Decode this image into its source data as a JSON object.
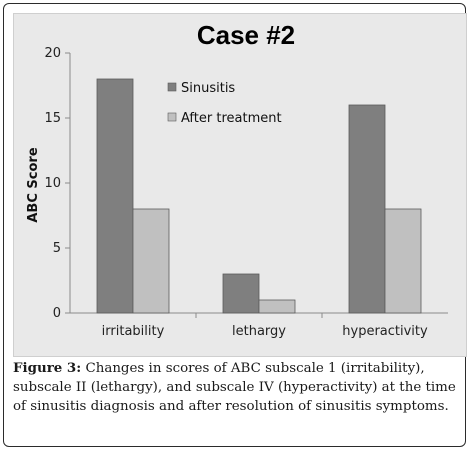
{
  "chart_data": {
    "type": "bar",
    "title": "Case #2",
    "ylabel": "ABC Score",
    "xlabel": "",
    "ylim": [
      0,
      20
    ],
    "yticks": [
      0,
      5,
      10,
      15,
      20
    ],
    "categories": [
      "irritability",
      "lethargy",
      "hyperactivity"
    ],
    "series": [
      {
        "name": "Sinusitis",
        "values": [
          18,
          3,
          16
        ],
        "color": "#7f7f7f"
      },
      {
        "name": "After treatment",
        "values": [
          8,
          1,
          8
        ],
        "color": "#c0c0c0"
      }
    ],
    "grid": false,
    "legend_position": "top-center"
  },
  "caption": {
    "label": "Figure 3:",
    "text": " Changes in scores of ABC subscale 1 (irritability), subscale II (lethargy), and subscale IV (hyperactivity) at the time of sinusitis diagnosis and after resolution of sinusitis symptoms."
  },
  "colors": {
    "plot_background": "#e9e9e9",
    "bar_edge": "#5a5a5a"
  }
}
